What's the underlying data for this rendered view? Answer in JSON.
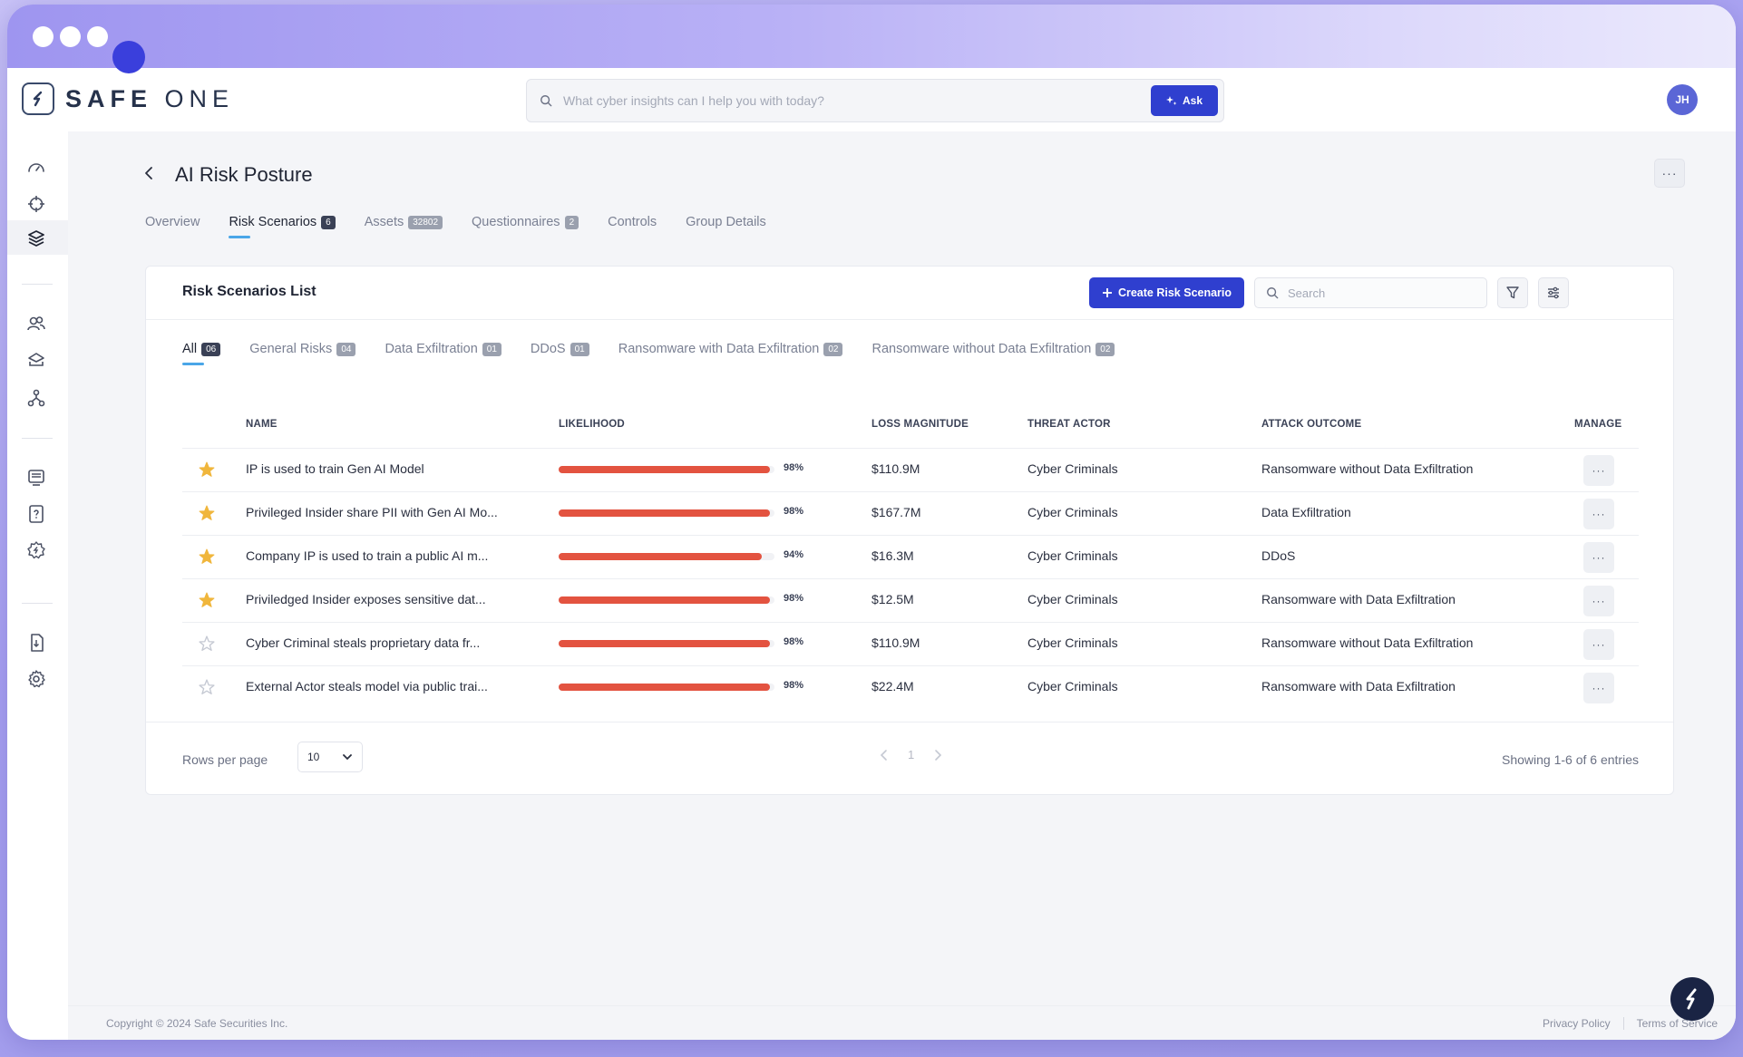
{
  "app": {
    "logo_bold": "SAFE",
    "logo_light": "ONE",
    "search_placeholder": "What cyber insights can I help you with today?",
    "ask_label": "Ask",
    "avatar_initials": "JH"
  },
  "page": {
    "title": "AI Risk Posture",
    "tabs": [
      {
        "label": "Overview",
        "badge": ""
      },
      {
        "label": "Risk Scenarios",
        "badge": "6"
      },
      {
        "label": "Assets",
        "badge": "32802"
      },
      {
        "label": "Questionnaires",
        "badge": "2"
      },
      {
        "label": "Controls",
        "badge": ""
      },
      {
        "label": "Group Details",
        "badge": ""
      }
    ]
  },
  "card": {
    "title": "Risk Scenarios List",
    "create_label": "Create Risk Scenario",
    "search_placeholder": "Search",
    "filters": [
      {
        "label": "All",
        "badge": "06"
      },
      {
        "label": "General Risks",
        "badge": "04"
      },
      {
        "label": "Data Exfiltration",
        "badge": "01"
      },
      {
        "label": "DDoS",
        "badge": "01"
      },
      {
        "label": "Ransomware with Data Exfiltration",
        "badge": "02"
      },
      {
        "label": "Ransomware without Data Exfiltration",
        "badge": "02"
      }
    ],
    "columns": {
      "name": "NAME",
      "likelihood": "LIKELIHOOD",
      "loss": "LOSS MAGNITUDE",
      "actor": "THREAT ACTOR",
      "outcome": "ATTACK OUTCOME",
      "manage": "MANAGE"
    },
    "rows": [
      {
        "starred": true,
        "name": "IP is used to train Gen AI Model",
        "likelihood_label": "98%",
        "likelihood": 0.98,
        "loss": "$110.9M",
        "actor": "Cyber Criminals",
        "outcome": "Ransomware without Data Exfiltration"
      },
      {
        "starred": true,
        "name": "Privileged Insider share PII with Gen AI Mo...",
        "likelihood_label": "98%",
        "likelihood": 0.98,
        "loss": "$167.7M",
        "actor": "Cyber Criminals",
        "outcome": "Data Exfiltration"
      },
      {
        "starred": true,
        "name": "Company IP is used to train a public AI m...",
        "likelihood_label": "94%",
        "likelihood": 0.94,
        "loss": "$16.3M",
        "actor": "Cyber Criminals",
        "outcome": "DDoS"
      },
      {
        "starred": true,
        "name": "Priviledged Insider exposes sensitive dat...",
        "likelihood_label": "98%",
        "likelihood": 0.98,
        "loss": "$12.5M",
        "actor": "Cyber Criminals",
        "outcome": "Ransomware with Data Exfiltration"
      },
      {
        "starred": false,
        "name": "Cyber Criminal steals proprietary data fr...",
        "likelihood_label": "98%",
        "likelihood": 0.98,
        "loss": "$110.9M",
        "actor": "Cyber Criminals",
        "outcome": "Ransomware without Data Exfiltration"
      },
      {
        "starred": false,
        "name": "External Actor steals model via public trai...",
        "likelihood_label": "98%",
        "likelihood": 0.98,
        "loss": "$22.4M",
        "actor": "Cyber Criminals",
        "outcome": "Ransomware with Data Exfiltration"
      }
    ],
    "rows_per_page_label": "Rows per page",
    "rows_per_page": "10",
    "current_page": "1",
    "showing": "Showing 1-6 of 6 entries"
  },
  "footer": {
    "copyright": "Copyright © 2024 Safe Securities Inc.",
    "privacy": "Privacy Policy",
    "terms": "Terms of Service"
  },
  "colors": {
    "accent": "#2f3fcf",
    "likelihood_bar": "#e35340",
    "star_filled": "#f0b63c",
    "star_empty": "#c5c9d3"
  }
}
